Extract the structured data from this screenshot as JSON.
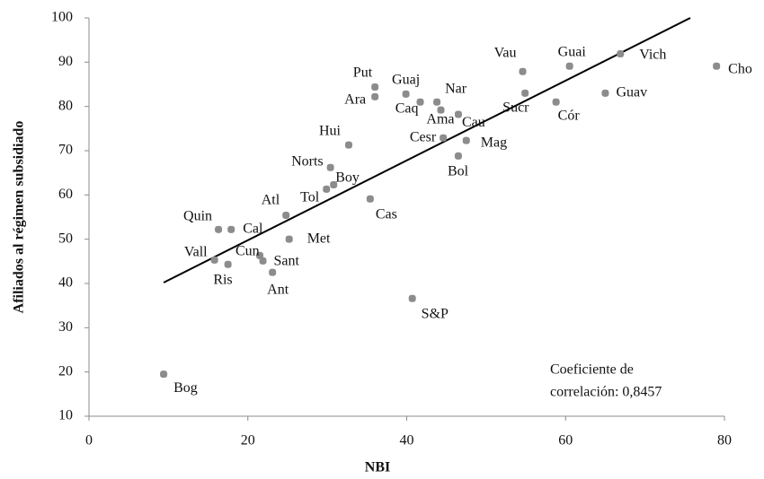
{
  "chart_data": {
    "type": "scatter",
    "xlabel": "NBI",
    "ylabel": "Afiliados al régimen subsidiado",
    "annotation": [
      "Coeficiente de",
      "correlación: 0,8457"
    ],
    "labels": [
      "Bog",
      "Quin",
      "Cal",
      "Vall",
      "Ris",
      "Cun",
      "Sant",
      "Ant",
      "Atl",
      "Met",
      "Tol",
      "Boy",
      "Norts",
      "Hui",
      "Cas",
      "Put",
      "Ara",
      "Guaj",
      "Caq",
      "Nar",
      "Ama",
      "Cau",
      "Cesr",
      "Mag",
      "Bol",
      "S&P",
      "Vau",
      "Sucr",
      "Guai",
      "Vich",
      "Cór",
      "Guav",
      "Cho"
    ],
    "x": [
      9.4,
      16.3,
      17.9,
      15.8,
      17.5,
      21.5,
      21.9,
      23.1,
      24.8,
      25.2,
      29.9,
      30.8,
      30.4,
      32.7,
      35.4,
      36,
      36,
      39.9,
      41.7,
      43.8,
      44.3,
      46.5,
      44.6,
      47.5,
      46.5,
      40.7,
      54.6,
      54.9,
      60.5,
      66.9,
      58.8,
      65,
      79
    ],
    "y": [
      19.5,
      52.2,
      52.2,
      45.3,
      44.3,
      46.3,
      45.1,
      42.5,
      55.4,
      50,
      61.3,
      62.3,
      66.2,
      71.3,
      59.1,
      84.4,
      82.2,
      82.8,
      81,
      81,
      79.2,
      78.2,
      72.9,
      72.3,
      68.8,
      36.6,
      87.9,
      83,
      89.1,
      91.9,
      81,
      83,
      89.1
    ],
    "color": "#8c8c8c",
    "trendline": {
      "x": [
        9.4,
        75.7
      ],
      "y": [
        40.2,
        100
      ],
      "color": "#000000"
    },
    "xlim": [
      0,
      80
    ],
    "xticks": [
      0,
      20,
      40,
      60,
      80
    ],
    "ylim": [
      10,
      100
    ],
    "yticks": [
      10,
      20,
      30,
      40,
      50,
      60,
      70,
      80,
      90,
      100
    ]
  }
}
